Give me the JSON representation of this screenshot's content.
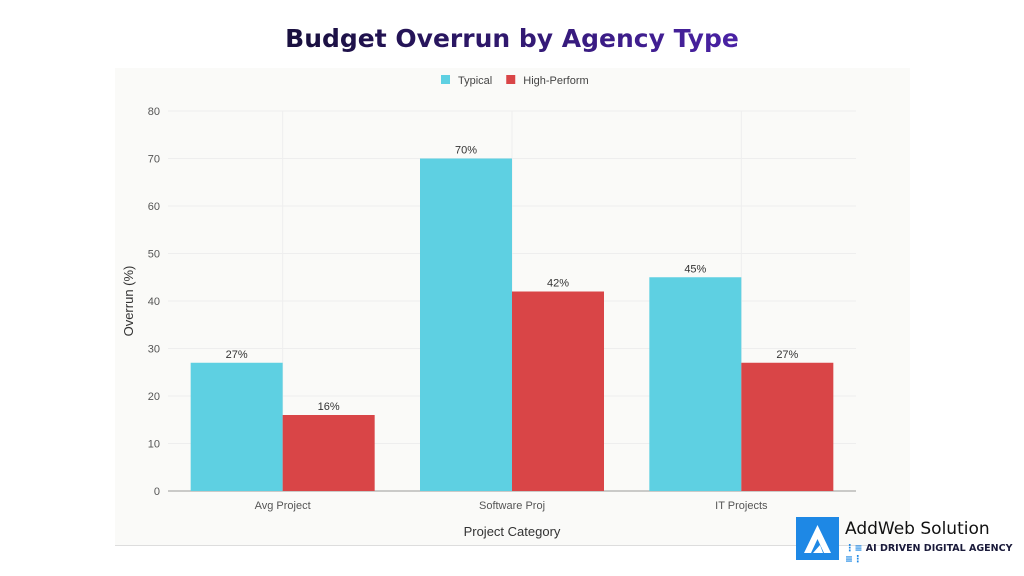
{
  "chart_data": {
    "type": "bar",
    "title": "Budget Overrun by Agency Type",
    "xlabel": "Project Category",
    "ylabel": "Overrun (%)",
    "categories": [
      "Avg Project",
      "Software Proj",
      "IT Projects"
    ],
    "series": [
      {
        "name": "Typical",
        "color": "#5ed0e2",
        "values": [
          27,
          70,
          45
        ],
        "labels": [
          "27%",
          "70%",
          "45%"
        ]
      },
      {
        "name": "High-Perform",
        "color": "#d94547",
        "values": [
          16,
          42,
          27
        ],
        "labels": [
          "16%",
          "42%",
          "27%"
        ]
      }
    ],
    "ylim": [
      0,
      80
    ],
    "yticks": [
      0,
      10,
      20,
      30,
      40,
      50,
      60,
      70,
      80
    ],
    "grid": true,
    "legend": "top-center"
  },
  "logo": {
    "name": "AddWeb Solution",
    "tagline": "AI DRIVEN DIGITAL AGENCY",
    "color": "#1e88e5"
  }
}
